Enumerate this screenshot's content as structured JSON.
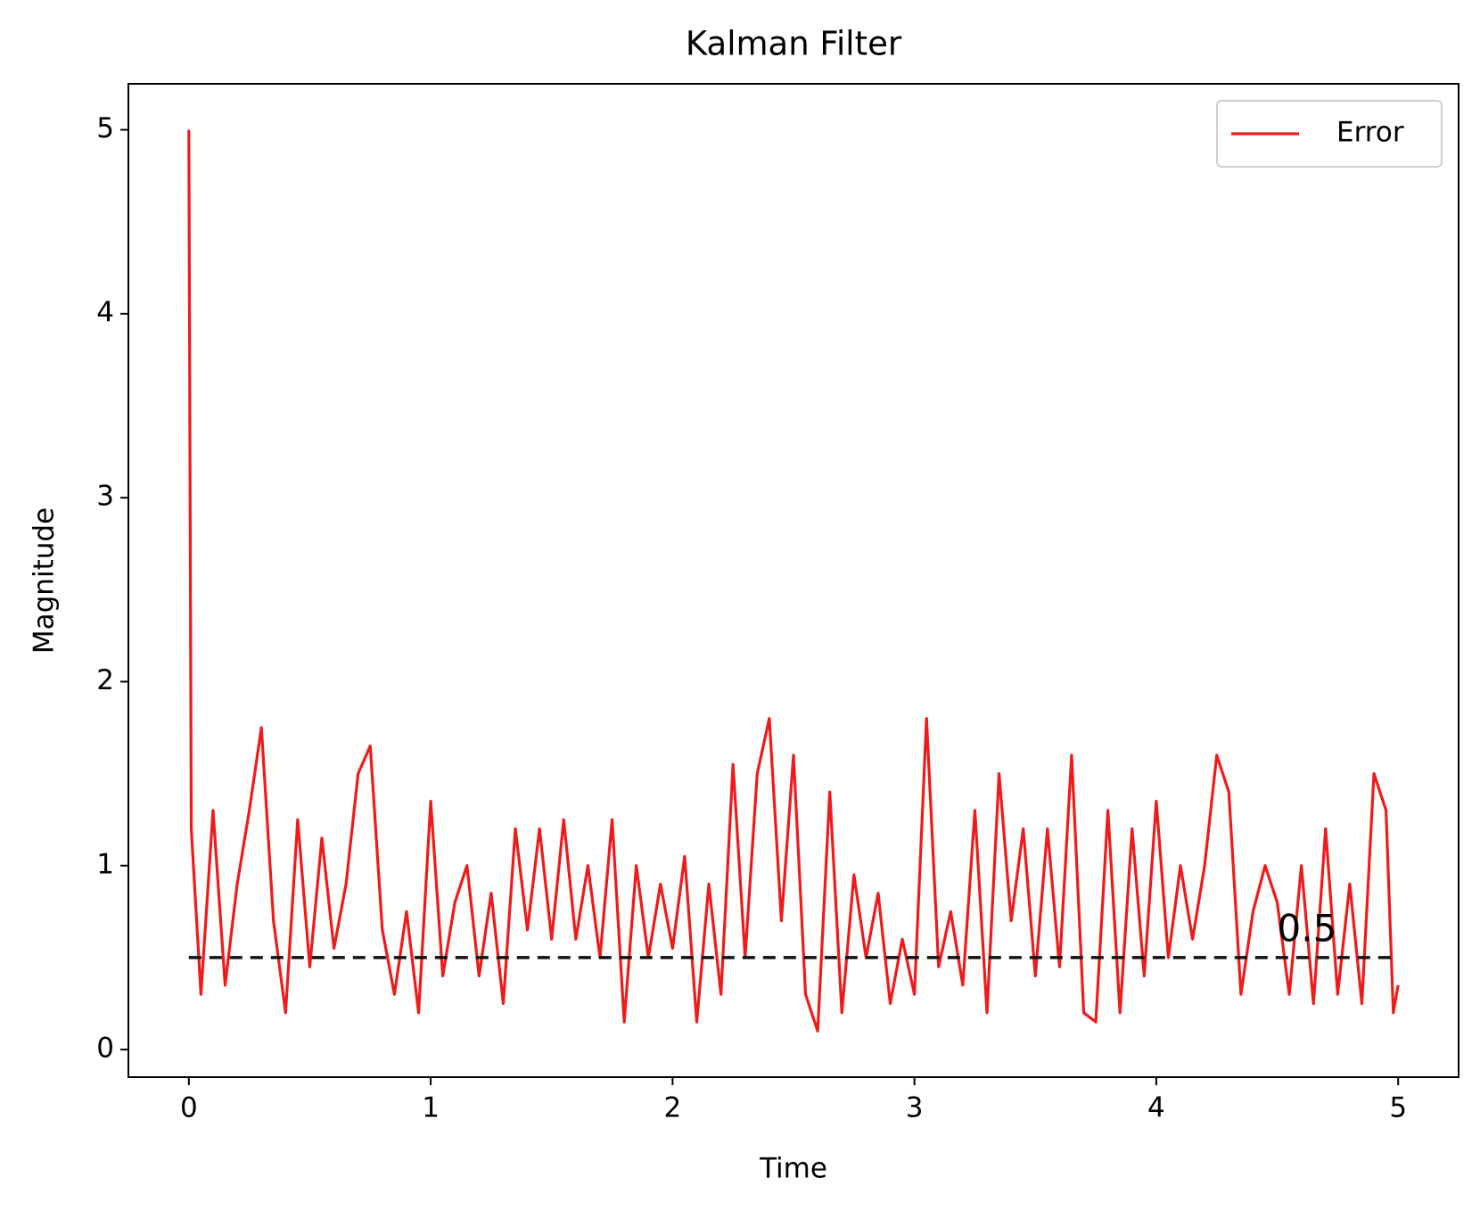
{
  "chart_data": {
    "type": "line",
    "title": "Kalman Filter",
    "x_label": "Time",
    "y_label": "Magnitude",
    "x": [
      0,
      0.01,
      0.05,
      0.1,
      0.15,
      0.2,
      0.25,
      0.3,
      0.35,
      0.4,
      0.45,
      0.5,
      0.55,
      0.6,
      0.65,
      0.7,
      0.75,
      0.8,
      0.85,
      0.9,
      0.95,
      1.0,
      1.05,
      1.1,
      1.15,
      1.2,
      1.25,
      1.3,
      1.35,
      1.4,
      1.45,
      1.5,
      1.55,
      1.6,
      1.65,
      1.7,
      1.75,
      1.8,
      1.85,
      1.9,
      1.95,
      2.0,
      2.05,
      2.1,
      2.15,
      2.2,
      2.25,
      2.3,
      2.35,
      2.4,
      2.45,
      2.5,
      2.55,
      2.6,
      2.65,
      2.7,
      2.75,
      2.8,
      2.85,
      2.9,
      2.95,
      3.0,
      3.05,
      3.1,
      3.15,
      3.2,
      3.25,
      3.3,
      3.35,
      3.4,
      3.45,
      3.5,
      3.55,
      3.6,
      3.65,
      3.7,
      3.75,
      3.8,
      3.85,
      3.9,
      3.95,
      4.0,
      4.05,
      4.1,
      4.15,
      4.2,
      4.25,
      4.3,
      4.35,
      4.4,
      4.45,
      4.5,
      4.55,
      4.6,
      4.65,
      4.7,
      4.75,
      4.8,
      4.85,
      4.9,
      4.95,
      4.98,
      5.0
    ],
    "series": [
      {
        "name": "Error",
        "color": "#f01a1a",
        "values": [
          5.0,
          1.2,
          0.3,
          1.3,
          0.35,
          0.9,
          1.3,
          1.75,
          0.7,
          0.2,
          1.25,
          0.45,
          1.15,
          0.55,
          0.9,
          1.5,
          1.65,
          0.65,
          0.3,
          0.75,
          0.2,
          1.35,
          0.4,
          0.8,
          1.0,
          0.4,
          0.85,
          0.25,
          1.2,
          0.65,
          1.2,
          0.6,
          1.25,
          0.6,
          1.0,
          0.5,
          1.25,
          0.15,
          1.0,
          0.5,
          0.9,
          0.55,
          1.05,
          0.15,
          0.9,
          0.3,
          1.55,
          0.5,
          1.5,
          1.8,
          0.7,
          1.6,
          0.3,
          0.1,
          1.4,
          0.2,
          0.95,
          0.5,
          0.85,
          0.25,
          0.6,
          0.3,
          1.8,
          0.45,
          0.75,
          0.35,
          1.3,
          0.2,
          1.5,
          0.7,
          1.2,
          0.4,
          1.2,
          0.45,
          1.6,
          0.2,
          0.15,
          1.3,
          0.2,
          1.2,
          0.4,
          1.35,
          0.5,
          1.0,
          0.6,
          1.0,
          1.6,
          1.4,
          0.3,
          0.75,
          1.0,
          0.8,
          0.3,
          1.0,
          0.25,
          1.2,
          0.3,
          0.9,
          0.25,
          1.5,
          1.3,
          0.2,
          0.35
        ]
      }
    ],
    "hline": 0.5,
    "hline_color": "#111111",
    "xlim": [
      -0.25,
      5.25
    ],
    "ylim": [
      -0.15,
      5.25
    ],
    "xticks": [
      0,
      1,
      2,
      3,
      4,
      5
    ],
    "yticks": [
      0,
      1,
      2,
      3,
      4,
      5
    ],
    "legend": "upper right"
  }
}
